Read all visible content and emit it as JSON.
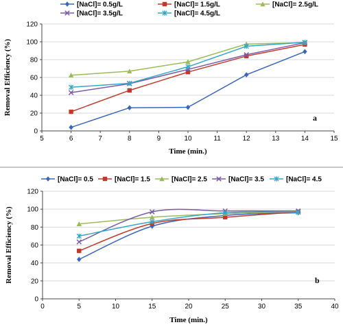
{
  "chart_data": [
    {
      "type": "line",
      "panel_label": "a",
      "xlabel": "Time (min.)",
      "ylabel": "Removal Efficiency (%)",
      "xlim": [
        5,
        15
      ],
      "ylim": [
        0,
        120
      ],
      "xticks": [
        "5",
        "6",
        "7",
        "8",
        "9",
        "10",
        "11",
        "12",
        "13",
        "14",
        "15"
      ],
      "yticks": [
        "0",
        "20",
        "40",
        "60",
        "80",
        "100",
        "120"
      ],
      "x": [
        6,
        8,
        10,
        12,
        14
      ],
      "grid": "horizontal",
      "legend_position": "top",
      "smooth": false,
      "series": [
        {
          "name": "[NaCl]= 0.5g/L",
          "color": "#3a66b8",
          "marker": "diamond",
          "values": [
            4,
            26,
            26.5,
            63,
            89
          ]
        },
        {
          "name": "[NaCl]= 1.5g/L",
          "color": "#c0392b",
          "marker": "square",
          "values": [
            21.5,
            45.5,
            66,
            84,
            97
          ]
        },
        {
          "name": "[NaCl]= 2.5g/L",
          "color": "#9bbb59",
          "marker": "triangle",
          "values": [
            62.5,
            67,
            77.5,
            97.5,
            99
          ]
        },
        {
          "name": "[NaCl]= 3.5g/L",
          "color": "#7a5aa8",
          "marker": "x",
          "values": [
            43,
            53,
            69,
            85.5,
            99
          ]
        },
        {
          "name": "[NaCl]= 4.5g/L",
          "color": "#33a7c8",
          "marker": "star",
          "values": [
            49,
            53.5,
            72,
            95,
            99.5
          ]
        }
      ]
    },
    {
      "type": "line",
      "panel_label": "b",
      "xlabel": "Time (min.)",
      "ylabel": "Removal Efficiency (%)",
      "xlim": [
        0,
        40
      ],
      "ylim": [
        0,
        120
      ],
      "xticks": [
        "0",
        "5",
        "10",
        "15",
        "20",
        "25",
        "30",
        "35",
        "40"
      ],
      "yticks": [
        "0",
        "20",
        "40",
        "60",
        "80",
        "100",
        "120"
      ],
      "x": [
        5,
        15,
        25,
        35
      ],
      "grid": "horizontal",
      "legend_position": "top",
      "smooth": true,
      "series": [
        {
          "name": "[NaCl]= 0.5",
          "color": "#3a66b8",
          "marker": "diamond",
          "values": [
            44,
            81,
            93,
            96
          ]
        },
        {
          "name": "[NaCl]= 1.5",
          "color": "#c0392b",
          "marker": "square",
          "values": [
            53.5,
            84,
            91,
            97
          ]
        },
        {
          "name": "[NaCl]= 2.5",
          "color": "#9bbb59",
          "marker": "triangle",
          "values": [
            83.5,
            91,
            95,
            97
          ]
        },
        {
          "name": "[NaCl]= 3.5",
          "color": "#7a5aa8",
          "marker": "x",
          "values": [
            63.5,
            97,
            98,
            98
          ]
        },
        {
          "name": "[NaCl]= 4.5",
          "color": "#33a7c8",
          "marker": "star",
          "values": [
            70,
            86,
            96,
            96.5
          ]
        }
      ]
    }
  ]
}
